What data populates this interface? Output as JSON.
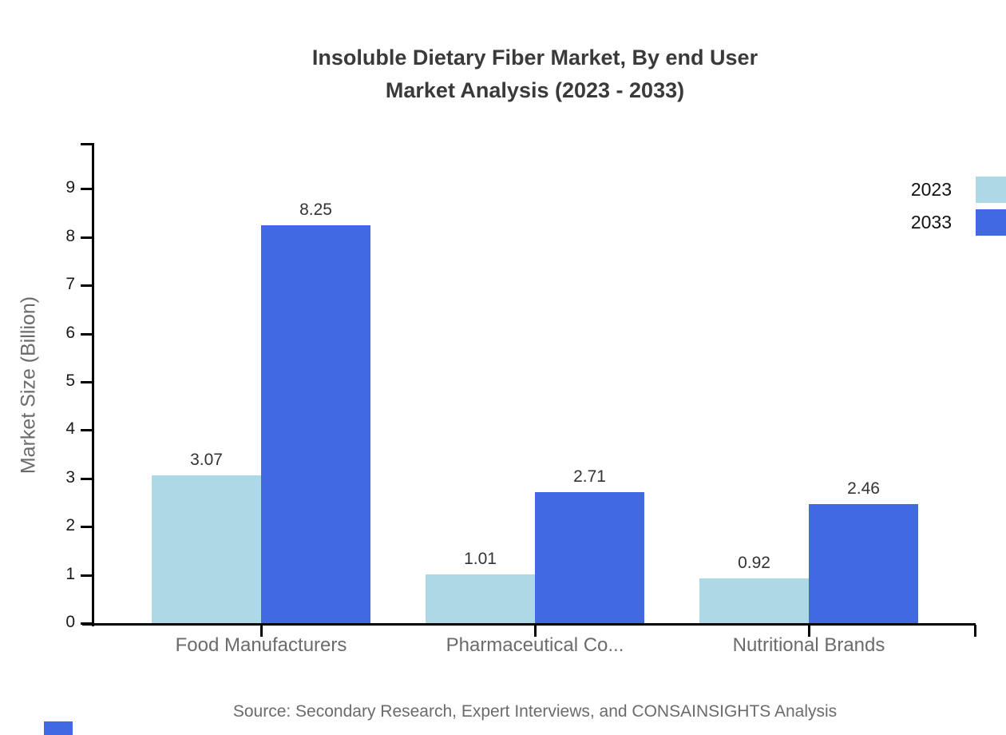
{
  "header": {
    "line1": "Insoluble Dietary Fiber Market, By end User",
    "line2": "Market Analysis (2023 - 2033)"
  },
  "chart_data": {
    "type": "bar",
    "title": "Insoluble Dietary Fiber Market, By end User Market Analysis (2023 - 2033)",
    "categories": [
      "Food Manufacturers",
      "Pharmaceutical Co...",
      "Nutritional Brands"
    ],
    "series": [
      {
        "name": "2023",
        "color": "#ADD8E6",
        "values": [
          3.07,
          1.01,
          0.92
        ]
      },
      {
        "name": "2033",
        "color": "#4169E1",
        "values": [
          8.25,
          2.71,
          2.46
        ]
      }
    ],
    "value_labels": [
      "3.07",
      "8.25",
      "1.01",
      "2.71",
      "0.92",
      "2.46"
    ],
    "xlabel": "",
    "ylabel": "Market Size (Billion)",
    "ylim": [
      0,
      9.9
    ],
    "yticks": [
      0,
      1,
      2,
      3,
      4,
      5,
      6,
      7,
      8,
      9
    ],
    "grid": false,
    "legend_position": "top-right",
    "source": "Source: Secondary Research, Expert Interviews, and CONSAINSIGHTS Analysis"
  },
  "colors": {
    "series_2023": "#ADD8E6",
    "series_2033": "#4169E1",
    "title_text": "#3a3a3a",
    "axis_text": "#1a1a1a",
    "muted_text": "#6b6b6b",
    "axis_line": "#000000",
    "corner_mark": "#4169E1"
  }
}
